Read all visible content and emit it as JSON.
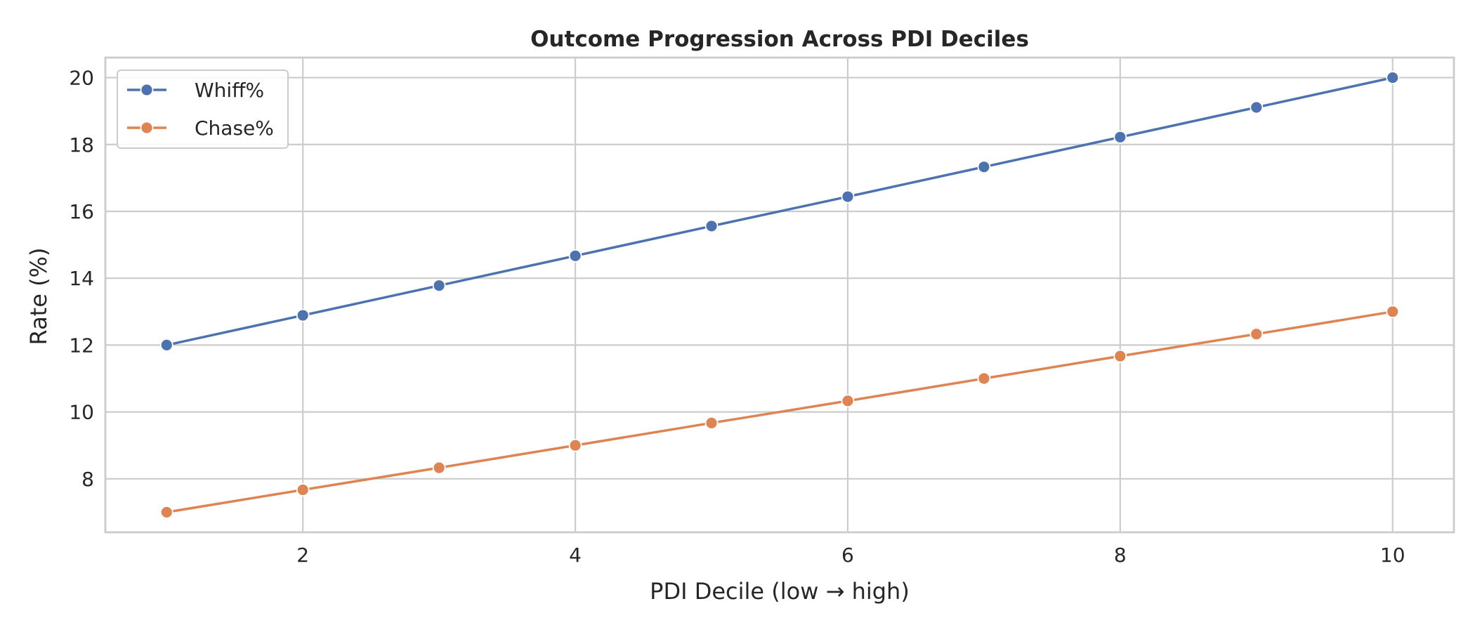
{
  "chart_data": {
    "type": "line",
    "title": "Outcome Progression Across PDI Deciles",
    "xlabel": "PDI Decile (low → high)",
    "ylabel": "Rate (%)",
    "x": [
      1,
      2,
      3,
      4,
      5,
      6,
      7,
      8,
      9,
      10
    ],
    "xlim": [
      0.55,
      10.45
    ],
    "ylim": [
      6.4,
      20.6
    ],
    "xticks": [
      2,
      4,
      6,
      8,
      10
    ],
    "yticks": [
      8,
      10,
      12,
      14,
      16,
      18,
      20
    ],
    "grid": true,
    "legend_position": "top-left",
    "series": [
      {
        "name": "Whiff%",
        "color": "#4c72b0",
        "values": [
          12.0,
          12.89,
          13.78,
          14.67,
          15.56,
          16.44,
          17.33,
          18.22,
          19.11,
          20.0
        ]
      },
      {
        "name": "Chase%",
        "color": "#dd8452",
        "values": [
          7.0,
          7.67,
          8.33,
          9.0,
          9.67,
          10.33,
          11.0,
          11.67,
          12.33,
          13.0
        ]
      }
    ]
  }
}
